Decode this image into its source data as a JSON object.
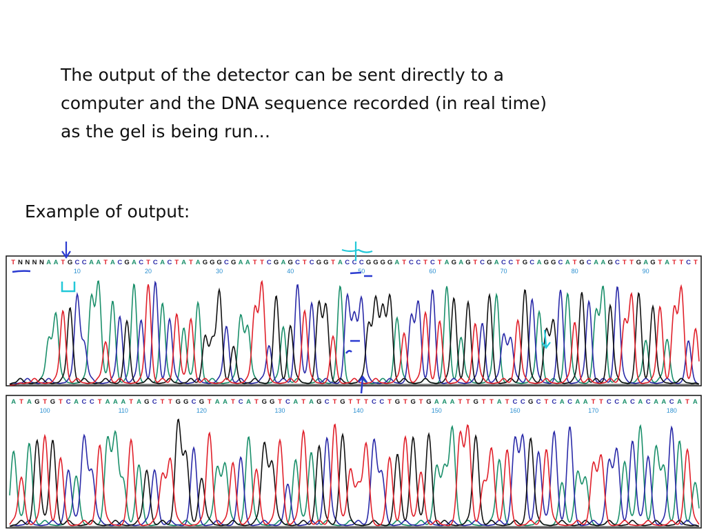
{
  "slide": {
    "body_lines": [
      "The output of the detector can be sent directly to a",
      "computer and the DNA sequence recorded (in real time)",
      "as the gel is being run…"
    ],
    "example_label": "Example of output:"
  },
  "colors": {
    "A": "#1a8f6a",
    "C": "#2a2aa8",
    "G": "#111111",
    "T": "#e0202a",
    "N": "#111111",
    "ink": "#2a3ad0",
    "cyan": "#22c8d8",
    "position_label": "#2a8fd0"
  },
  "chart_data": [
    {
      "type": "line",
      "name": "",
      "title": "",
      "sequence": "TNNNNAATGCCAATACGACTCACTATAGGGCGAATTCGAGCTCGGTACCCGGGGATCCTCTAGAGTCGACCTGCAGGCATGCAAGCTTGAGTATTCT",
      "position_labels": [
        {
          "position": 10,
          "label": "10"
        },
        {
          "position": 20,
          "label": "20"
        },
        {
          "position": 30,
          "label": "30"
        },
        {
          "position": 40,
          "label": "40"
        },
        {
          "position": 50,
          "label": "50"
        },
        {
          "position": 60,
          "label": "60"
        },
        {
          "position": 70,
          "label": "70"
        },
        {
          "position": 80,
          "label": "80"
        },
        {
          "position": 90,
          "label": "90"
        }
      ],
      "series": [
        {
          "base": "A"
        },
        {
          "base": "C"
        },
        {
          "base": "G"
        },
        {
          "base": "T"
        }
      ]
    },
    {
      "type": "line",
      "name": "",
      "title": "",
      "sequence": "ATAGTGTCACCTAAATAGCTTGGCGTAATCATGGTCATAGCTGTTTCCTGTGTGAAATTGTTATCCGCTCACAATTCCACACAACATA",
      "position_labels": [
        {
          "position": 100,
          "label": "100"
        },
        {
          "position": 110,
          "label": "110"
        },
        {
          "position": 120,
          "label": "120"
        },
        {
          "position": 130,
          "label": "130"
        },
        {
          "position": 140,
          "label": "140"
        },
        {
          "position": 150,
          "label": "150"
        },
        {
          "position": 160,
          "label": "160"
        },
        {
          "position": 170,
          "label": "170"
        },
        {
          "position": 180,
          "label": "180"
        }
      ],
      "series": [
        {
          "base": "A"
        },
        {
          "base": "C"
        },
        {
          "base": "G"
        },
        {
          "base": "T"
        }
      ]
    }
  ]
}
